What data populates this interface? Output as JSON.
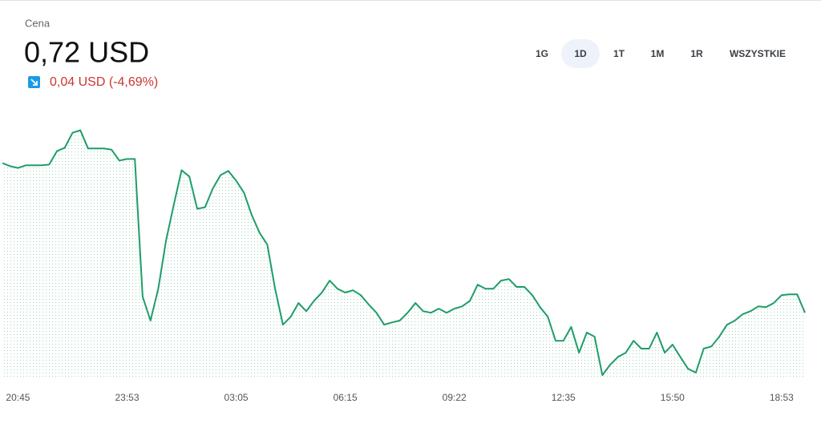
{
  "header": {
    "label": "Cena",
    "price": "0,72 USD",
    "change": "0,04 USD (-4,69%)"
  },
  "ranges": [
    "1G",
    "1D",
    "1T",
    "1M",
    "1R",
    "WSZYSTKIE"
  ],
  "selected_range": 1,
  "chart_data": {
    "type": "line",
    "categories": [
      null,
      null,
      "20:45",
      null,
      null,
      null,
      null,
      null,
      null,
      null,
      null,
      null,
      null,
      null,
      null,
      null,
      "23:53",
      null,
      null,
      null,
      null,
      null,
      null,
      null,
      null,
      null,
      null,
      null,
      null,
      null,
      "03:05",
      null,
      null,
      null,
      null,
      null,
      null,
      null,
      null,
      null,
      null,
      null,
      null,
      null,
      "06:15",
      null,
      null,
      null,
      null,
      null,
      null,
      null,
      null,
      null,
      null,
      null,
      null,
      null,
      "09:22",
      null,
      null,
      null,
      null,
      null,
      null,
      null,
      null,
      null,
      null,
      null,
      null,
      null,
      "12:35",
      null,
      null,
      null,
      null,
      null,
      null,
      null,
      null,
      null,
      null,
      null,
      null,
      null,
      "15:50",
      null,
      null,
      null,
      null,
      null,
      null,
      null,
      null,
      null,
      null,
      null,
      null,
      null,
      "18:53",
      null,
      null,
      null
    ],
    "values": [
      0.7571,
      0.7563,
      0.7558,
      0.7565,
      0.7565,
      0.7565,
      0.7567,
      0.7603,
      0.7612,
      0.7652,
      0.7659,
      0.761,
      0.761,
      0.761,
      0.7607,
      0.7578,
      0.7582,
      0.7582,
      0.7214,
      0.715,
      0.7235,
      0.7364,
      0.746,
      0.7552,
      0.7535,
      0.7449,
      0.7453,
      0.7503,
      0.7539,
      0.755,
      0.7524,
      0.7492,
      0.7432,
      0.7385,
      0.7353,
      0.7235,
      0.7139,
      0.716,
      0.7197,
      0.7175,
      0.7203,
      0.7225,
      0.7257,
      0.7235,
      0.7225,
      0.7231,
      0.7218,
      0.7193,
      0.7171,
      0.7139,
      0.7145,
      0.715,
      0.7171,
      0.7197,
      0.7175,
      0.7171,
      0.7182,
      0.7171,
      0.7182,
      0.7188,
      0.7203,
      0.7246,
      0.7235,
      0.7235,
      0.7257,
      0.7261,
      0.724,
      0.724,
      0.7218,
      0.7186,
      0.716,
      0.7096,
      0.7096,
      0.7133,
      0.7064,
      0.7118,
      0.7107,
      0.7004,
      0.7032,
      0.7053,
      0.7064,
      0.7096,
      0.7075,
      0.7075,
      0.7118,
      0.7064,
      0.7086,
      0.7053,
      0.7021,
      0.7011,
      0.7075,
      0.7081,
      0.7107,
      0.7139,
      0.715,
      0.7167,
      0.7175,
      0.7188,
      0.7186,
      0.7197,
      0.7218,
      0.722,
      0.722,
      0.7171
    ],
    "color": "#1f9d68",
    "ylim": [
      0.7,
      0.775
    ]
  }
}
